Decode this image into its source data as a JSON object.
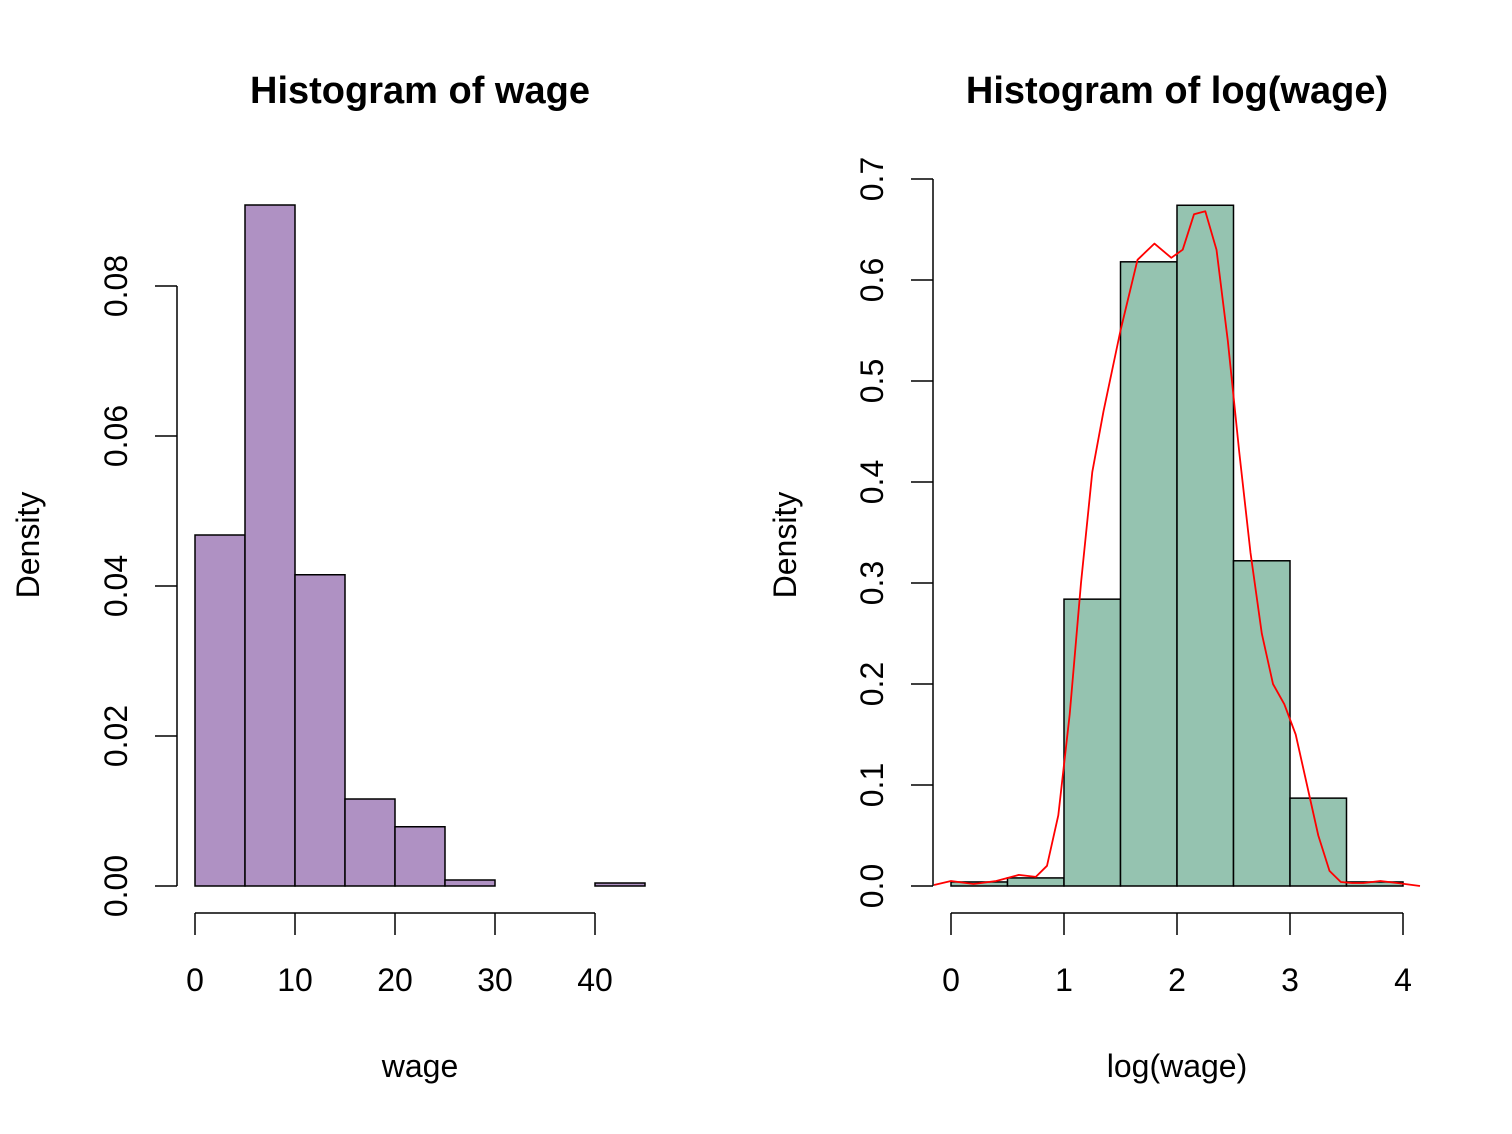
{
  "chart_data": [
    {
      "type": "bar",
      "title": "Histogram of wage",
      "xlabel": "wage",
      "ylabel": "Density",
      "bins": [
        [
          0,
          5
        ],
        [
          5,
          10
        ],
        [
          10,
          15
        ],
        [
          15,
          20
        ],
        [
          20,
          25
        ],
        [
          25,
          30
        ],
        [
          30,
          35
        ],
        [
          35,
          40
        ],
        [
          40,
          45
        ]
      ],
      "values": [
        0.0468,
        0.0908,
        0.0415,
        0.0116,
        0.0079,
        0.0008,
        0.0,
        0.0,
        0.0004
      ],
      "xlim": [
        0,
        45
      ],
      "ylim": [
        0,
        0.09
      ],
      "xticks": [
        0,
        10,
        20,
        30,
        40
      ],
      "xtick_labels": [
        "0",
        "10",
        "20",
        "30",
        "40"
      ],
      "yticks": [
        0,
        0.02,
        0.04,
        0.06,
        0.08
      ],
      "ytick_labels": [
        "0.00",
        "0.02",
        "0.04",
        "0.06",
        "0.08"
      ],
      "bar_color": "#af91c3",
      "grid": false
    },
    {
      "type": "bar",
      "title": "Histogram of log(wage)",
      "xlabel": "log(wage)",
      "ylabel": "Density",
      "bins": [
        [
          0,
          0.5
        ],
        [
          0.5,
          1
        ],
        [
          1,
          1.5
        ],
        [
          1.5,
          2
        ],
        [
          2,
          2.5
        ],
        [
          2.5,
          3
        ],
        [
          3,
          3.5
        ],
        [
          3.5,
          4
        ]
      ],
      "values": [
        0.004,
        0.008,
        0.284,
        0.618,
        0.674,
        0.322,
        0.087,
        0.004
      ],
      "xlim": [
        0,
        4
      ],
      "ylim": [
        0,
        0.7
      ],
      "xticks": [
        0,
        1,
        2,
        3,
        4
      ],
      "xtick_labels": [
        "0",
        "1",
        "2",
        "3",
        "4"
      ],
      "yticks": [
        0,
        0.1,
        0.2,
        0.3,
        0.4,
        0.5,
        0.6,
        0.7
      ],
      "ytick_labels": [
        "0.0",
        "0.1",
        "0.2",
        "0.3",
        "0.4",
        "0.5",
        "0.6",
        "0.7"
      ],
      "bar_color": "#95c3b0",
      "grid": false,
      "density_line": {
        "color": "#ff0000",
        "x": [
          -0.15,
          0,
          0.2,
          0.4,
          0.6,
          0.75,
          0.85,
          0.95,
          1.05,
          1.15,
          1.25,
          1.35,
          1.5,
          1.65,
          1.8,
          1.95,
          2.05,
          2.15,
          2.25,
          2.35,
          2.45,
          2.55,
          2.65,
          2.75,
          2.85,
          2.95,
          3.05,
          3.15,
          3.25,
          3.35,
          3.45,
          3.55,
          3.65,
          3.8,
          3.95,
          4.15
        ],
        "y": [
          0.001,
          0.005,
          0.002,
          0.005,
          0.011,
          0.009,
          0.02,
          0.07,
          0.17,
          0.3,
          0.41,
          0.47,
          0.55,
          0.62,
          0.636,
          0.622,
          0.63,
          0.665,
          0.668,
          0.63,
          0.54,
          0.43,
          0.33,
          0.25,
          0.2,
          0.18,
          0.15,
          0.1,
          0.05,
          0.015,
          0.004,
          0.003,
          0.003,
          0.005,
          0.003,
          0.0
        ]
      }
    }
  ]
}
